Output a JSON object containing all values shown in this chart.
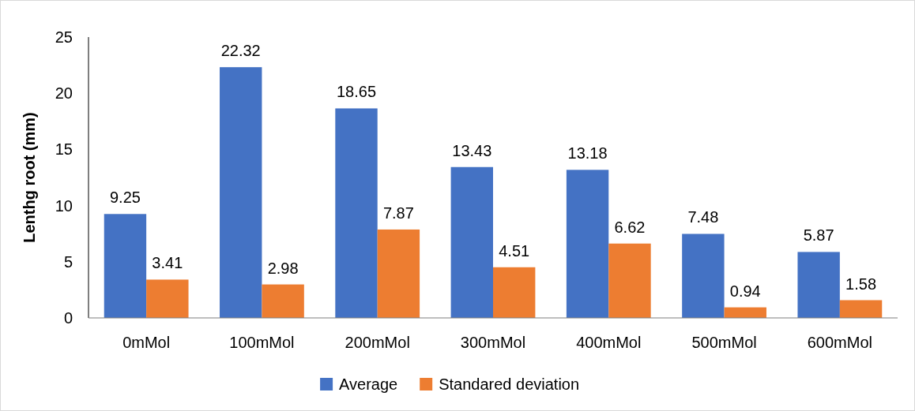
{
  "chart_data": {
    "type": "bar",
    "ylabel": "Lenthg root (mm)",
    "categories": [
      "0mMol",
      "100mMol",
      "200mMol",
      "300mMol",
      "400mMol",
      "500mMol",
      "600mMol"
    ],
    "series": [
      {
        "name": "Average",
        "color": "#4472c4",
        "values": [
          9.25,
          22.32,
          18.65,
          13.43,
          13.18,
          7.48,
          5.87
        ]
      },
      {
        "name": "Standared deviation",
        "color": "#ed7d31",
        "values": [
          3.41,
          2.98,
          7.87,
          4.51,
          6.62,
          0.94,
          1.58
        ]
      }
    ],
    "ylim": [
      0,
      25
    ],
    "yticks": [
      0,
      5,
      10,
      15,
      20,
      25
    ],
    "grid": false,
    "legend": "bottom",
    "data_labels": true
  }
}
